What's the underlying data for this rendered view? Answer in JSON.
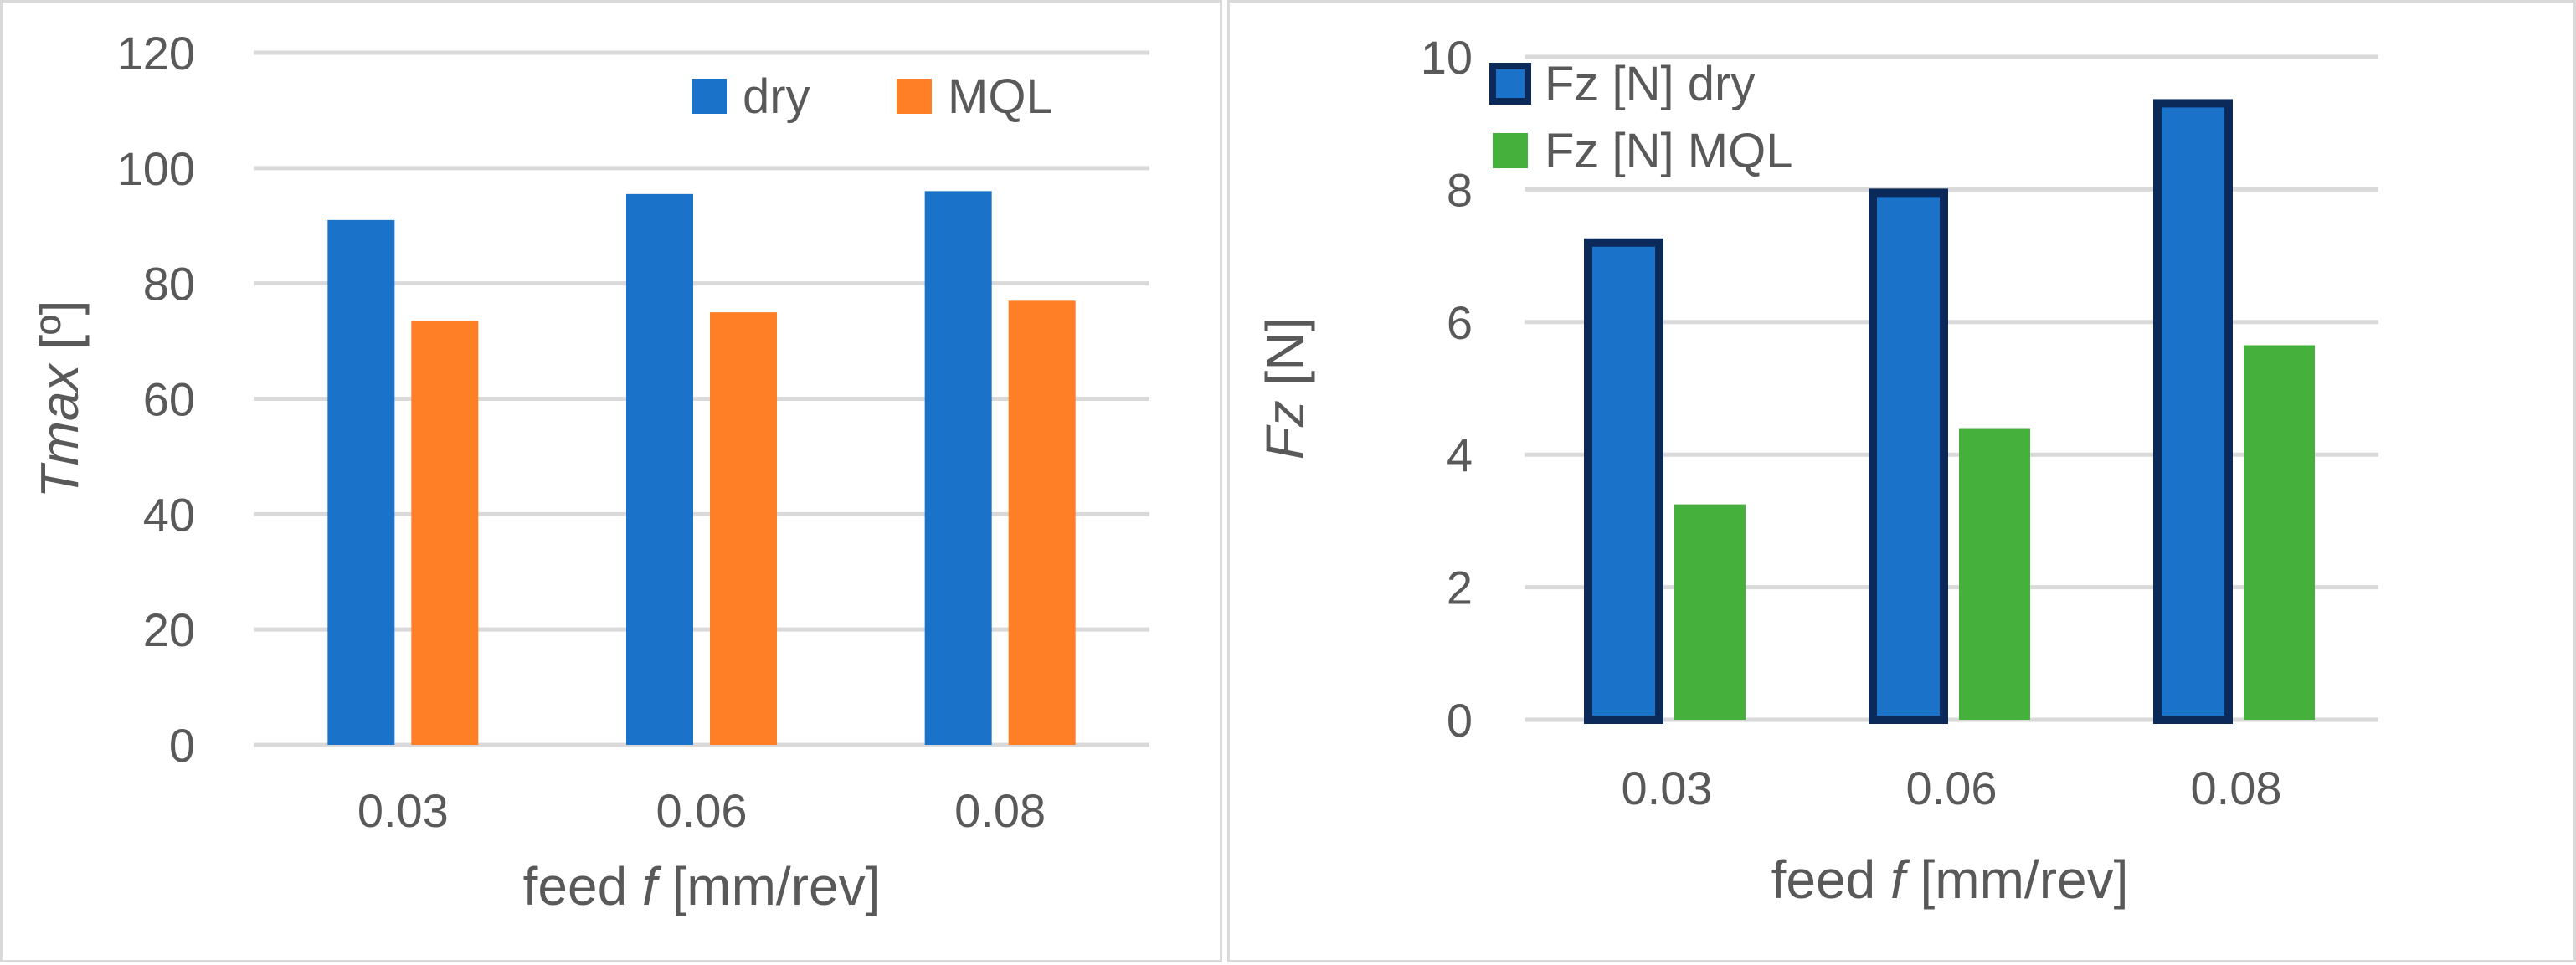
{
  "chart_data": [
    {
      "type": "bar",
      "title": "",
      "categories": [
        "0.03",
        "0.06",
        "0.08"
      ],
      "series": [
        {
          "name": "dry",
          "values": [
            91,
            95.5,
            96
          ],
          "color": "#1a73c9"
        },
        {
          "name": "MQL",
          "values": [
            73.5,
            75,
            77
          ],
          "color": "#ff7f27"
        }
      ],
      "xlabel": {
        "prefix": "feed ",
        "symbol": "f",
        "suffix": " [mm/rev]"
      },
      "ylabel": {
        "symbol": "Tmax",
        "unit": "[º]"
      },
      "yticks": [
        "0",
        "20",
        "40",
        "60",
        "80",
        "100",
        "120"
      ],
      "ylim": [
        0,
        120
      ],
      "grid": true,
      "legend_position": "top-right"
    },
    {
      "type": "bar",
      "title": "",
      "categories": [
        "0.03",
        "0.06",
        "0.08"
      ],
      "series": [
        {
          "name": "Fz [N] dry",
          "values": [
            7.2,
            7.95,
            9.3
          ],
          "color": "#1a73c9",
          "border": "#0b2a5a"
        },
        {
          "name": "Fz [N] MQL",
          "values": [
            3.25,
            4.4,
            5.65
          ],
          "color": "#45b03c"
        }
      ],
      "xlabel": {
        "prefix": "feed ",
        "symbol": "f",
        "suffix": " [mm/rev]"
      },
      "ylabel": {
        "symbol": "Fz",
        "unit": "[N]"
      },
      "yticks": [
        "0",
        "2",
        "4",
        "6",
        "8",
        "10"
      ],
      "ylim": [
        0,
        10
      ],
      "grid": true,
      "legend_position": "top-left"
    }
  ]
}
